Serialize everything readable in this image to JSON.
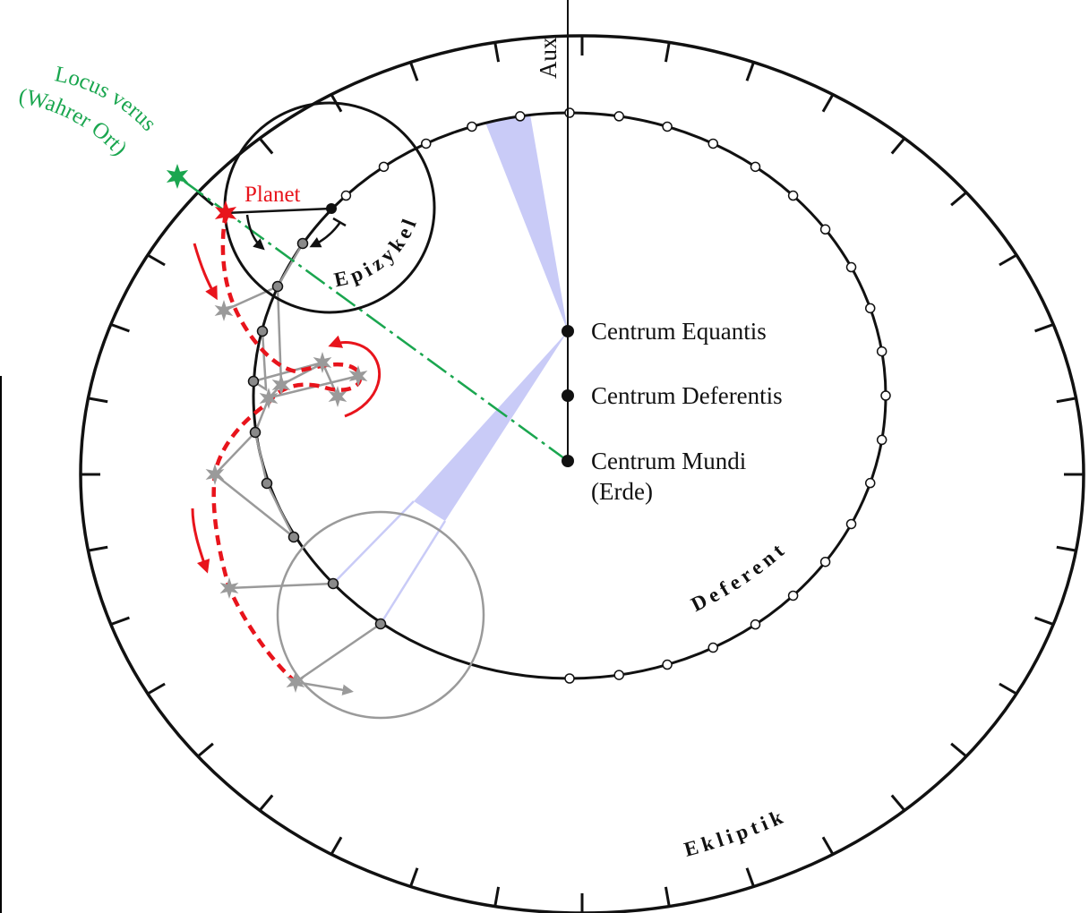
{
  "labels": {
    "aux": "Aux",
    "centrum_equantis": "Centrum Equantis",
    "centrum_deferentis": "Centrum Deferentis",
    "centrum_mundi": "Centrum Mundi",
    "centrum_mundi_sub": "(Erde)",
    "deferent": "Deferent",
    "ekliptik": "Ekliptik",
    "epizykel": "Epizykel",
    "planet": "Planet",
    "locus_verus_1": "Locus verus",
    "locus_verus_2": "(Wahrer Ort)"
  },
  "colors": {
    "line": "#111111",
    "planet": "#e8141c",
    "locus": "#1aa64f",
    "ghost": "#9a9a9a",
    "wedge": "#c9cbf7",
    "bg": "#ffffff"
  }
}
